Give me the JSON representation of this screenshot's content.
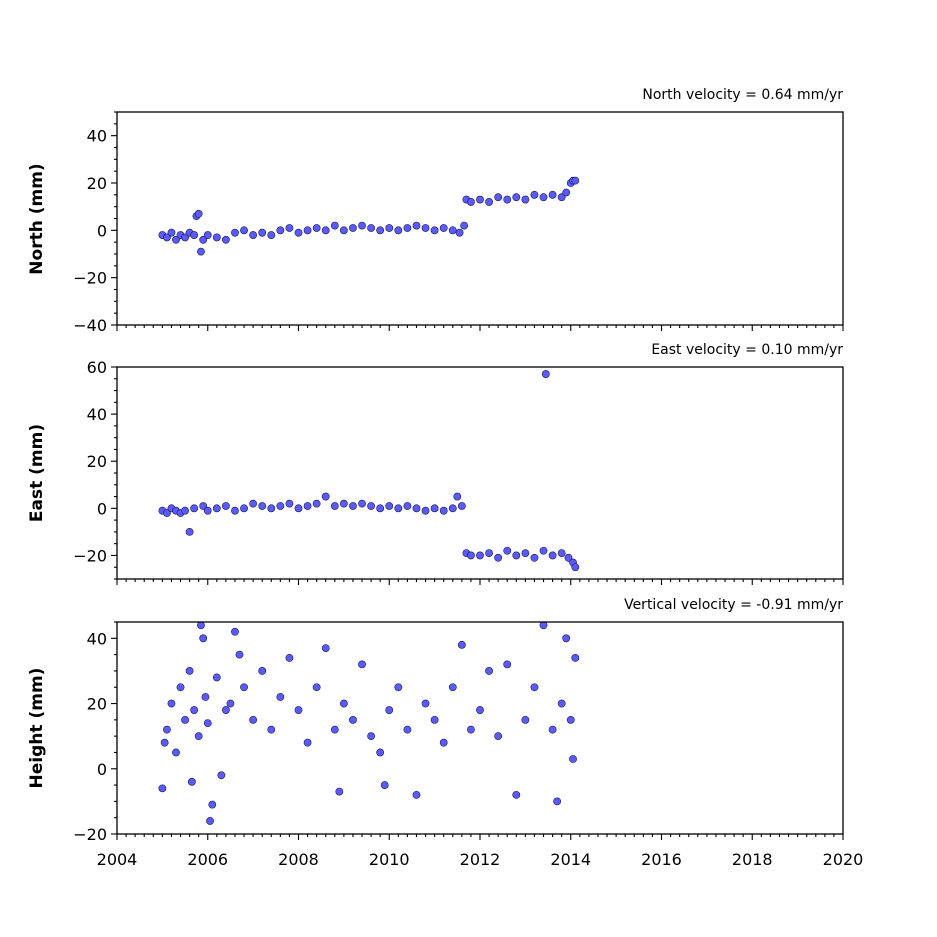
{
  "chart_data": {
    "type": "scatter",
    "x_axis": {
      "range": [
        2004,
        2020
      ],
      "ticks": [
        2004,
        2006,
        2008,
        2010,
        2012,
        2014,
        2016,
        2018,
        2020
      ],
      "tick_labels": [
        "2004",
        "2006",
        "2008",
        "2010",
        "2012",
        "2014",
        "2016",
        "2018",
        "2020"
      ],
      "minor_step": 0.2
    },
    "marker_color": "#5a5aff",
    "marker_edge_color": "#1a1a4a",
    "panels": [
      {
        "name": "north",
        "ylabel": "North (mm)",
        "annotation": "North velocity = 0.64 mm/yr",
        "ylim": [
          -40,
          50
        ],
        "yticks": [
          -40,
          -20,
          0,
          20,
          40
        ],
        "ytick_labels": [
          "−40",
          "−20",
          "0",
          "20",
          "40"
        ],
        "y_minor_step": 5,
        "points": [
          [
            2005.0,
            -2
          ],
          [
            2005.1,
            -3
          ],
          [
            2005.2,
            -1
          ],
          [
            2005.3,
            -4
          ],
          [
            2005.4,
            -2
          ],
          [
            2005.5,
            -3
          ],
          [
            2005.6,
            -1
          ],
          [
            2005.7,
            -2
          ],
          [
            2005.75,
            6
          ],
          [
            2005.8,
            7
          ],
          [
            2005.85,
            -9
          ],
          [
            2005.9,
            -4
          ],
          [
            2006.0,
            -2
          ],
          [
            2006.2,
            -3
          ],
          [
            2006.4,
            -4
          ],
          [
            2006.6,
            -1
          ],
          [
            2006.8,
            0
          ],
          [
            2007.0,
            -2
          ],
          [
            2007.2,
            -1
          ],
          [
            2007.4,
            -2
          ],
          [
            2007.6,
            0
          ],
          [
            2007.8,
            1
          ],
          [
            2008.0,
            -1
          ],
          [
            2008.2,
            0
          ],
          [
            2008.4,
            1
          ],
          [
            2008.6,
            0
          ],
          [
            2008.8,
            2
          ],
          [
            2009.0,
            0
          ],
          [
            2009.2,
            1
          ],
          [
            2009.4,
            2
          ],
          [
            2009.6,
            1
          ],
          [
            2009.8,
            0
          ],
          [
            2010.0,
            1
          ],
          [
            2010.2,
            0
          ],
          [
            2010.4,
            1
          ],
          [
            2010.6,
            2
          ],
          [
            2010.8,
            1
          ],
          [
            2011.0,
            0
          ],
          [
            2011.2,
            1
          ],
          [
            2011.4,
            0
          ],
          [
            2011.55,
            -1
          ],
          [
            2011.65,
            2
          ],
          [
            2011.7,
            13
          ],
          [
            2011.8,
            12
          ],
          [
            2012.0,
            13
          ],
          [
            2012.2,
            12
          ],
          [
            2012.4,
            14
          ],
          [
            2012.6,
            13
          ],
          [
            2012.8,
            14
          ],
          [
            2013.0,
            13
          ],
          [
            2013.2,
            15
          ],
          [
            2013.4,
            14
          ],
          [
            2013.6,
            15
          ],
          [
            2013.8,
            14
          ],
          [
            2013.9,
            16
          ],
          [
            2014.0,
            20
          ],
          [
            2014.05,
            21
          ],
          [
            2014.1,
            21
          ]
        ]
      },
      {
        "name": "east",
        "ylabel": "East (mm)",
        "annotation": "East velocity = 0.10 mm/yr",
        "ylim": [
          -30,
          60
        ],
        "yticks": [
          -20,
          0,
          20,
          40,
          60
        ],
        "ytick_labels": [
          "−20",
          "0",
          "20",
          "40",
          "60"
        ],
        "y_minor_step": 5,
        "points": [
          [
            2005.0,
            -1
          ],
          [
            2005.1,
            -2
          ],
          [
            2005.2,
            0
          ],
          [
            2005.3,
            -1
          ],
          [
            2005.4,
            -2
          ],
          [
            2005.5,
            -1
          ],
          [
            2005.6,
            -10
          ],
          [
            2005.7,
            0
          ],
          [
            2005.9,
            1
          ],
          [
            2006.0,
            -1
          ],
          [
            2006.2,
            0
          ],
          [
            2006.4,
            1
          ],
          [
            2006.6,
            -1
          ],
          [
            2006.8,
            0
          ],
          [
            2007.0,
            2
          ],
          [
            2007.2,
            1
          ],
          [
            2007.4,
            0
          ],
          [
            2007.6,
            1
          ],
          [
            2007.8,
            2
          ],
          [
            2008.0,
            0
          ],
          [
            2008.2,
            1
          ],
          [
            2008.4,
            2
          ],
          [
            2008.6,
            5
          ],
          [
            2008.8,
            1
          ],
          [
            2009.0,
            2
          ],
          [
            2009.2,
            1
          ],
          [
            2009.4,
            2
          ],
          [
            2009.6,
            1
          ],
          [
            2009.8,
            0
          ],
          [
            2010.0,
            1
          ],
          [
            2010.2,
            0
          ],
          [
            2010.4,
            1
          ],
          [
            2010.6,
            0
          ],
          [
            2010.8,
            -1
          ],
          [
            2011.0,
            0
          ],
          [
            2011.2,
            -1
          ],
          [
            2011.4,
            0
          ],
          [
            2011.5,
            5
          ],
          [
            2011.6,
            1
          ],
          [
            2011.7,
            -19
          ],
          [
            2011.8,
            -20
          ],
          [
            2012.0,
            -20
          ],
          [
            2012.2,
            -19
          ],
          [
            2012.4,
            -21
          ],
          [
            2012.6,
            -18
          ],
          [
            2012.8,
            -20
          ],
          [
            2013.0,
            -19
          ],
          [
            2013.2,
            -21
          ],
          [
            2013.4,
            -18
          ],
          [
            2013.45,
            57
          ],
          [
            2013.6,
            -20
          ],
          [
            2013.8,
            -19
          ],
          [
            2013.95,
            -21
          ],
          [
            2014.05,
            -23
          ],
          [
            2014.1,
            -25
          ]
        ]
      },
      {
        "name": "height",
        "ylabel": "Height (mm)",
        "annotation": "Vertical velocity = -0.91 mm/yr",
        "ylim": [
          -20,
          45
        ],
        "yticks": [
          -20,
          0,
          20,
          40
        ],
        "ytick_labels": [
          "−20",
          "0",
          "20",
          "40"
        ],
        "y_minor_step": 5,
        "points": [
          [
            2005.0,
            -6
          ],
          [
            2005.05,
            8
          ],
          [
            2005.1,
            12
          ],
          [
            2005.2,
            20
          ],
          [
            2005.3,
            5
          ],
          [
            2005.4,
            25
          ],
          [
            2005.5,
            15
          ],
          [
            2005.6,
            30
          ],
          [
            2005.65,
            -4
          ],
          [
            2005.7,
            18
          ],
          [
            2005.8,
            10
          ],
          [
            2005.85,
            44
          ],
          [
            2005.9,
            40
          ],
          [
            2005.95,
            22
          ],
          [
            2006.0,
            14
          ],
          [
            2006.05,
            -16
          ],
          [
            2006.1,
            -11
          ],
          [
            2006.2,
            28
          ],
          [
            2006.3,
            -2
          ],
          [
            2006.4,
            18
          ],
          [
            2006.5,
            20
          ],
          [
            2006.6,
            42
          ],
          [
            2006.7,
            35
          ],
          [
            2006.8,
            25
          ],
          [
            2007.0,
            15
          ],
          [
            2007.2,
            30
          ],
          [
            2007.4,
            12
          ],
          [
            2007.6,
            22
          ],
          [
            2007.8,
            34
          ],
          [
            2008.0,
            18
          ],
          [
            2008.2,
            8
          ],
          [
            2008.4,
            25
          ],
          [
            2008.6,
            37
          ],
          [
            2008.8,
            12
          ],
          [
            2008.9,
            -7
          ],
          [
            2009.0,
            20
          ],
          [
            2009.2,
            15
          ],
          [
            2009.4,
            32
          ],
          [
            2009.6,
            10
          ],
          [
            2009.8,
            5
          ],
          [
            2009.9,
            -5
          ],
          [
            2010.0,
            18
          ],
          [
            2010.2,
            25
          ],
          [
            2010.4,
            12
          ],
          [
            2010.6,
            -8
          ],
          [
            2010.8,
            20
          ],
          [
            2011.0,
            15
          ],
          [
            2011.2,
            8
          ],
          [
            2011.4,
            25
          ],
          [
            2011.6,
            38
          ],
          [
            2011.8,
            12
          ],
          [
            2012.0,
            18
          ],
          [
            2012.2,
            30
          ],
          [
            2012.4,
            10
          ],
          [
            2012.6,
            32
          ],
          [
            2012.8,
            -8
          ],
          [
            2013.0,
            15
          ],
          [
            2013.2,
            25
          ],
          [
            2013.4,
            44
          ],
          [
            2013.6,
            12
          ],
          [
            2013.7,
            -10
          ],
          [
            2013.8,
            20
          ],
          [
            2013.9,
            40
          ],
          [
            2014.0,
            15
          ],
          [
            2014.05,
            3
          ],
          [
            2014.1,
            34
          ]
        ]
      }
    ]
  }
}
